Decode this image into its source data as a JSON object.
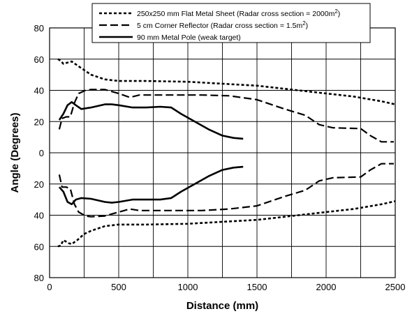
{
  "chart_data": {
    "type": "line",
    "title": "",
    "xlabel": "Distance (mm)",
    "ylabel": "Angle (Degrees)",
    "xlim": [
      0,
      2500
    ],
    "ylim": [
      -80,
      80
    ],
    "x_ticks": [
      0,
      500,
      1000,
      1500,
      2000,
      2500
    ],
    "x_tick_labels": [
      "0",
      "500",
      "1000",
      "1500",
      "2000",
      "2500"
    ],
    "y_ticks": [
      80,
      60,
      40,
      20,
      0,
      -20,
      -40,
      -60,
      -80
    ],
    "y_tick_labels": [
      "80",
      "60",
      "40",
      "20",
      "0",
      "20",
      "40",
      "60",
      "80"
    ],
    "grid": true,
    "legend_position": "top-right",
    "series": [
      {
        "name": "250x250 mm Flat Metal Sheet (Radar cross section = 2000m2)",
        "legend_main": "250x250 mm Flat Metal Sheet (Radar cross section = 2000m",
        "legend_sup": "2",
        "legend_tail": ")",
        "style": "dotted",
        "upper": [
          [
            60,
            60
          ],
          [
            80,
            59
          ],
          [
            100,
            57
          ],
          [
            120,
            57.5
          ],
          [
            140,
            58
          ],
          [
            160,
            58.5
          ],
          [
            200,
            56
          ],
          [
            250,
            53
          ],
          [
            300,
            50
          ],
          [
            400,
            47
          ],
          [
            500,
            46
          ],
          [
            700,
            46
          ],
          [
            1000,
            45.5
          ],
          [
            1300,
            44
          ],
          [
            1500,
            43
          ],
          [
            1800,
            40
          ],
          [
            2000,
            38
          ],
          [
            2200,
            36
          ],
          [
            2400,
            33
          ],
          [
            2500,
            31
          ]
        ],
        "lower": [
          [
            60,
            -60
          ],
          [
            80,
            -59.5
          ],
          [
            100,
            -56
          ],
          [
            120,
            -57
          ],
          [
            140,
            -58
          ],
          [
            160,
            -58.5
          ],
          [
            200,
            -56
          ],
          [
            250,
            -52
          ],
          [
            300,
            -50
          ],
          [
            400,
            -47
          ],
          [
            500,
            -46
          ],
          [
            700,
            -46
          ],
          [
            1000,
            -45.5
          ],
          [
            1300,
            -44
          ],
          [
            1500,
            -43
          ],
          [
            1800,
            -40
          ],
          [
            2000,
            -38
          ],
          [
            2200,
            -36
          ],
          [
            2400,
            -33
          ],
          [
            2500,
            -31
          ]
        ]
      },
      {
        "name": "5 cm Corner Reflector (Radar cross section = 1.5m2)",
        "legend_main": "5 cm Corner Reflector (Radar cross section = 1.5m",
        "legend_sup": "2",
        "legend_tail": ")",
        "style": "dashed",
        "upper": [
          [
            70,
            15
          ],
          [
            90,
            22
          ],
          [
            120,
            23
          ],
          [
            150,
            23
          ],
          [
            180,
            32
          ],
          [
            210,
            38
          ],
          [
            260,
            40
          ],
          [
            300,
            40.5
          ],
          [
            400,
            40.5
          ],
          [
            500,
            38
          ],
          [
            580,
            35.5
          ],
          [
            650,
            37
          ],
          [
            800,
            37
          ],
          [
            1100,
            37
          ],
          [
            1300,
            36.5
          ],
          [
            1500,
            34
          ],
          [
            1700,
            28
          ],
          [
            1850,
            24
          ],
          [
            1950,
            18
          ],
          [
            2050,
            16
          ],
          [
            2250,
            15.5
          ],
          [
            2320,
            11
          ],
          [
            2400,
            7
          ],
          [
            2490,
            7
          ]
        ],
        "lower": [
          [
            70,
            -14
          ],
          [
            90,
            -22
          ],
          [
            120,
            -22
          ],
          [
            150,
            -23
          ],
          [
            180,
            -33
          ],
          [
            210,
            -38
          ],
          [
            260,
            -40.5
          ],
          [
            300,
            -41
          ],
          [
            400,
            -40.5
          ],
          [
            500,
            -38
          ],
          [
            580,
            -36
          ],
          [
            650,
            -37
          ],
          [
            800,
            -37
          ],
          [
            1100,
            -37
          ],
          [
            1300,
            -36
          ],
          [
            1500,
            -34
          ],
          [
            1700,
            -28
          ],
          [
            1850,
            -24
          ],
          [
            1950,
            -18
          ],
          [
            2050,
            -16
          ],
          [
            2250,
            -15.5
          ],
          [
            2320,
            -11
          ],
          [
            2400,
            -7
          ],
          [
            2490,
            -7
          ]
        ]
      },
      {
        "name": "90 mm Metal Pole (weak target)",
        "legend_main": "90 mm Metal Pole (weak target)",
        "legend_sup": "",
        "legend_tail": "",
        "style": "solid",
        "upper": [
          [
            70,
            21
          ],
          [
            100,
            25
          ],
          [
            130,
            30.5
          ],
          [
            160,
            32.5
          ],
          [
            190,
            30.5
          ],
          [
            230,
            28
          ],
          [
            300,
            29
          ],
          [
            400,
            31
          ],
          [
            450,
            31
          ],
          [
            500,
            30.5
          ],
          [
            600,
            29
          ],
          [
            700,
            29
          ],
          [
            800,
            29.5
          ],
          [
            880,
            29
          ],
          [
            950,
            25
          ],
          [
            1050,
            20
          ],
          [
            1150,
            15
          ],
          [
            1250,
            11
          ],
          [
            1330,
            9.5
          ],
          [
            1400,
            9
          ]
        ],
        "lower": [
          [
            70,
            -22
          ],
          [
            100,
            -25
          ],
          [
            130,
            -31.5
          ],
          [
            160,
            -33
          ],
          [
            190,
            -30
          ],
          [
            230,
            -29
          ],
          [
            300,
            -29.5
          ],
          [
            400,
            -31.5
          ],
          [
            450,
            -32
          ],
          [
            500,
            -31.5
          ],
          [
            600,
            -30
          ],
          [
            700,
            -30
          ],
          [
            800,
            -30
          ],
          [
            880,
            -29
          ],
          [
            950,
            -25
          ],
          [
            1050,
            -20
          ],
          [
            1150,
            -15
          ],
          [
            1250,
            -11
          ],
          [
            1330,
            -9.5
          ],
          [
            1400,
            -9
          ]
        ]
      }
    ]
  }
}
